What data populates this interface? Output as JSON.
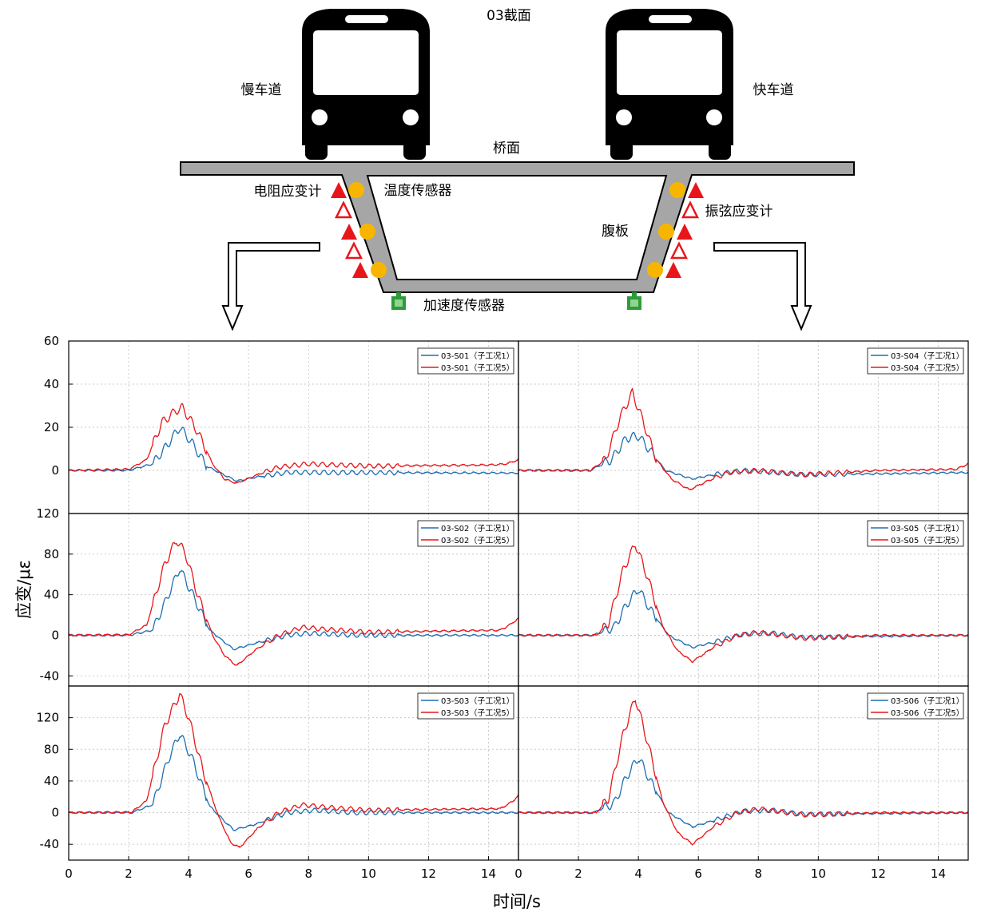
{
  "diagram": {
    "section_title": "03截面",
    "slow_lane": "慢车道",
    "fast_lane": "快车道",
    "deck": "桥面",
    "resistance_gauge": "电阻应变计",
    "temperature_sensor": "温度传感器",
    "web": "腹板",
    "vibrating_wire_gauge": "振弦应变计",
    "accelerometer": "加速度传感器"
  },
  "colors": {
    "blue": "#1f6fb0",
    "red": "#e8161a",
    "orange": "#f8b500",
    "green": "#2e9c3a",
    "gray": "#a6a6a6"
  },
  "axes": {
    "ylabel": "应变/με",
    "xlabel": "时间/s"
  },
  "chart_data": [
    {
      "type": "line",
      "ylim": [
        -20,
        60
      ],
      "yticks": [
        0,
        20,
        40,
        60
      ],
      "xlim": [
        0,
        15
      ],
      "xticks": [
        0,
        2,
        4,
        6,
        8,
        10,
        12,
        14
      ],
      "grid": true,
      "legend": "top-right",
      "series": [
        {
          "name": "03-S01（子工况1）",
          "color": "#1f6fb0",
          "base": [
            [
              0,
              0
            ],
            [
              2,
              0
            ],
            [
              2.8,
              3
            ],
            [
              3.3,
              12
            ],
            [
              3.7,
              20
            ],
            [
              4.1,
              13
            ],
            [
              4.6,
              2
            ],
            [
              5.6,
              -5
            ],
            [
              6.3,
              -3
            ],
            [
              7.3,
              -1
            ],
            [
              8,
              -1
            ],
            [
              15,
              -1.2
            ]
          ]
        },
        {
          "name": "03-S01（子工况5）",
          "color": "#e8161a",
          "base": [
            [
              0,
              0
            ],
            [
              2,
              0.5
            ],
            [
              2.6,
              5
            ],
            [
              3.1,
              22
            ],
            [
              3.6,
              28
            ],
            [
              3.8,
              29
            ],
            [
              4.3,
              18
            ],
            [
              4.8,
              3
            ],
            [
              5.2,
              -4
            ],
            [
              5.6,
              -6
            ],
            [
              6.3,
              -2
            ],
            [
              7,
              1.5
            ],
            [
              8,
              3
            ],
            [
              10,
              2
            ],
            [
              14,
              2.5
            ],
            [
              14.6,
              3
            ],
            [
              15,
              5
            ]
          ]
        }
      ]
    },
    {
      "type": "line",
      "ylim": [
        -20,
        60
      ],
      "yticks": [
        0,
        20,
        40,
        60
      ],
      "xlim": [
        0,
        15
      ],
      "xticks": [
        0,
        2,
        4,
        6,
        8,
        10,
        12,
        14
      ],
      "grid": true,
      "legend": "top-right",
      "series": [
        {
          "name": "03-S04（子工况1）",
          "color": "#1f6fb0",
          "base": [
            [
              0,
              0
            ],
            [
              2.4,
              0
            ],
            [
              3.1,
              5
            ],
            [
              3.6,
              15
            ],
            [
              4,
              16
            ],
            [
              4.4,
              9
            ],
            [
              4.9,
              0
            ],
            [
              5.8,
              -4
            ],
            [
              6.5,
              -2
            ],
            [
              7.5,
              0
            ],
            [
              9.5,
              -2
            ],
            [
              15,
              -1
            ]
          ]
        },
        {
          "name": "03-S04（子工况5）",
          "color": "#e8161a",
          "base": [
            [
              0,
              0
            ],
            [
              2.4,
              0
            ],
            [
              2.9,
              5
            ],
            [
              3.4,
              25
            ],
            [
              3.8,
              36
            ],
            [
              4.1,
              25
            ],
            [
              4.6,
              5
            ],
            [
              5.1,
              -4
            ],
            [
              5.7,
              -9
            ],
            [
              6.3,
              -5
            ],
            [
              7,
              -1
            ],
            [
              8,
              0
            ],
            [
              9.5,
              -2
            ],
            [
              12,
              0
            ],
            [
              14.6,
              0.5
            ],
            [
              15,
              3
            ]
          ]
        }
      ]
    },
    {
      "type": "line",
      "ylim": [
        -50,
        120
      ],
      "yticks": [
        -40,
        0,
        40,
        80,
        120
      ],
      "xlim": [
        0,
        15
      ],
      "xticks": [
        0,
        2,
        4,
        6,
        8,
        10,
        12,
        14
      ],
      "grid": true,
      "legend": "top-right",
      "series": [
        {
          "name": "03-S02（子工况1）",
          "color": "#1f6fb0",
          "base": [
            [
              0,
              0
            ],
            [
              2,
              0
            ],
            [
              2.8,
              5
            ],
            [
              3.3,
              38
            ],
            [
              3.7,
              66
            ],
            [
              4.1,
              42
            ],
            [
              4.7,
              5
            ],
            [
              5.5,
              -14
            ],
            [
              6.2,
              -8
            ],
            [
              7.3,
              0
            ],
            [
              8,
              2
            ],
            [
              9.5,
              0
            ],
            [
              15,
              0
            ]
          ]
        },
        {
          "name": "03-S02（子工况5）",
          "color": "#e8161a",
          "base": [
            [
              0,
              0
            ],
            [
              2,
              0.5
            ],
            [
              2.6,
              10
            ],
            [
              3.2,
              70
            ],
            [
              3.6,
              94
            ],
            [
              3.9,
              80
            ],
            [
              4.3,
              40
            ],
            [
              4.8,
              0
            ],
            [
              5.2,
              -20
            ],
            [
              5.6,
              -30
            ],
            [
              6.2,
              -15
            ],
            [
              7,
              0
            ],
            [
              7.8,
              8
            ],
            [
              8.5,
              6
            ],
            [
              10,
              3
            ],
            [
              12,
              4
            ],
            [
              14.4,
              5
            ],
            [
              14.8,
              12
            ],
            [
              15,
              17
            ]
          ]
        }
      ]
    },
    {
      "type": "line",
      "ylim": [
        -50,
        120
      ],
      "yticks": [
        -40,
        0,
        40,
        80,
        120
      ],
      "xlim": [
        0,
        15
      ],
      "xticks": [
        0,
        2,
        4,
        6,
        8,
        10,
        12,
        14
      ],
      "grid": true,
      "legend": "top-right",
      "series": [
        {
          "name": "03-S05（子工况1）",
          "color": "#1f6fb0",
          "base": [
            [
              0,
              0
            ],
            [
              2.5,
              0
            ],
            [
              3.2,
              8
            ],
            [
              3.6,
              30
            ],
            [
              4,
              46
            ],
            [
              4.4,
              25
            ],
            [
              5,
              0
            ],
            [
              5.8,
              -12
            ],
            [
              6.5,
              -7
            ],
            [
              7.5,
              1
            ],
            [
              8.5,
              2
            ],
            [
              9.5,
              -2
            ],
            [
              15,
              0
            ]
          ]
        },
        {
          "name": "03-S05（子工况5）",
          "color": "#e8161a",
          "base": [
            [
              0,
              0
            ],
            [
              2.6,
              0
            ],
            [
              3,
              12
            ],
            [
              3.5,
              65
            ],
            [
              3.9,
              90
            ],
            [
              4.3,
              58
            ],
            [
              4.8,
              10
            ],
            [
              5.3,
              -15
            ],
            [
              5.8,
              -26
            ],
            [
              6.5,
              -12
            ],
            [
              7.3,
              0
            ],
            [
              8,
              3
            ],
            [
              9.5,
              -3
            ],
            [
              12,
              0
            ],
            [
              14.6,
              0
            ],
            [
              15,
              0
            ]
          ]
        }
      ]
    },
    {
      "type": "line",
      "ylim": [
        -60,
        160
      ],
      "yticks": [
        -40,
        0,
        40,
        80,
        120
      ],
      "xlim": [
        0,
        15
      ],
      "xticks": [
        0,
        2,
        4,
        6,
        8,
        10,
        12,
        14
      ],
      "grid": true,
      "legend": "top-right",
      "series": [
        {
          "name": "03-S03（子工况1）",
          "color": "#1f6fb0",
          "base": [
            [
              0,
              0
            ],
            [
              2.1,
              0
            ],
            [
              2.8,
              10
            ],
            [
              3.3,
              65
            ],
            [
              3.7,
              100
            ],
            [
              4.1,
              70
            ],
            [
              4.7,
              8
            ],
            [
              5.5,
              -22
            ],
            [
              6.2,
              -15
            ],
            [
              7.3,
              0
            ],
            [
              8.2,
              3
            ],
            [
              9.5,
              0
            ],
            [
              15,
              0
            ]
          ]
        },
        {
          "name": "03-S03（子工况5）",
          "color": "#e8161a",
          "base": [
            [
              0,
              0
            ],
            [
              2.1,
              0.5
            ],
            [
              2.6,
              15
            ],
            [
              3.2,
              110
            ],
            [
              3.7,
              150
            ],
            [
              4,
              120
            ],
            [
              4.5,
              50
            ],
            [
              5,
              -5
            ],
            [
              5.4,
              -38
            ],
            [
              5.7,
              -44
            ],
            [
              6.3,
              -20
            ],
            [
              7,
              0
            ],
            [
              7.8,
              10
            ],
            [
              8.5,
              7
            ],
            [
              10,
              3
            ],
            [
              12,
              4
            ],
            [
              14.4,
              5
            ],
            [
              14.8,
              14
            ],
            [
              15,
              22
            ]
          ]
        }
      ]
    },
    {
      "type": "line",
      "ylim": [
        -60,
        160
      ],
      "yticks": [
        -40,
        0,
        40,
        80,
        120
      ],
      "xlim": [
        0,
        15
      ],
      "xticks": [
        0,
        2,
        4,
        6,
        8,
        10,
        12,
        14
      ],
      "grid": true,
      "legend": "top-right",
      "series": [
        {
          "name": "03-S06（子工况1）",
          "color": "#1f6fb0",
          "base": [
            [
              0,
              0
            ],
            [
              2.5,
              0
            ],
            [
              3.2,
              12
            ],
            [
              3.6,
              45
            ],
            [
              4,
              70
            ],
            [
              4.4,
              40
            ],
            [
              5,
              0
            ],
            [
              5.8,
              -18
            ],
            [
              6.5,
              -10
            ],
            [
              7.5,
              2
            ],
            [
              8.5,
              3
            ],
            [
              9.5,
              -2
            ],
            [
              15,
              0
            ]
          ]
        },
        {
          "name": "03-S06（子工况5）",
          "color": "#e8161a",
          "base": [
            [
              0,
              0
            ],
            [
              2.6,
              0
            ],
            [
              3,
              18
            ],
            [
              3.5,
              100
            ],
            [
              3.9,
              145
            ],
            [
              4.3,
              90
            ],
            [
              4.8,
              15
            ],
            [
              5.3,
              -25
            ],
            [
              5.8,
              -40
            ],
            [
              6.5,
              -18
            ],
            [
              7.3,
              0
            ],
            [
              8,
              5
            ],
            [
              9.5,
              -3
            ],
            [
              12,
              0
            ],
            [
              14.6,
              0
            ],
            [
              15,
              0
            ]
          ]
        }
      ]
    }
  ]
}
